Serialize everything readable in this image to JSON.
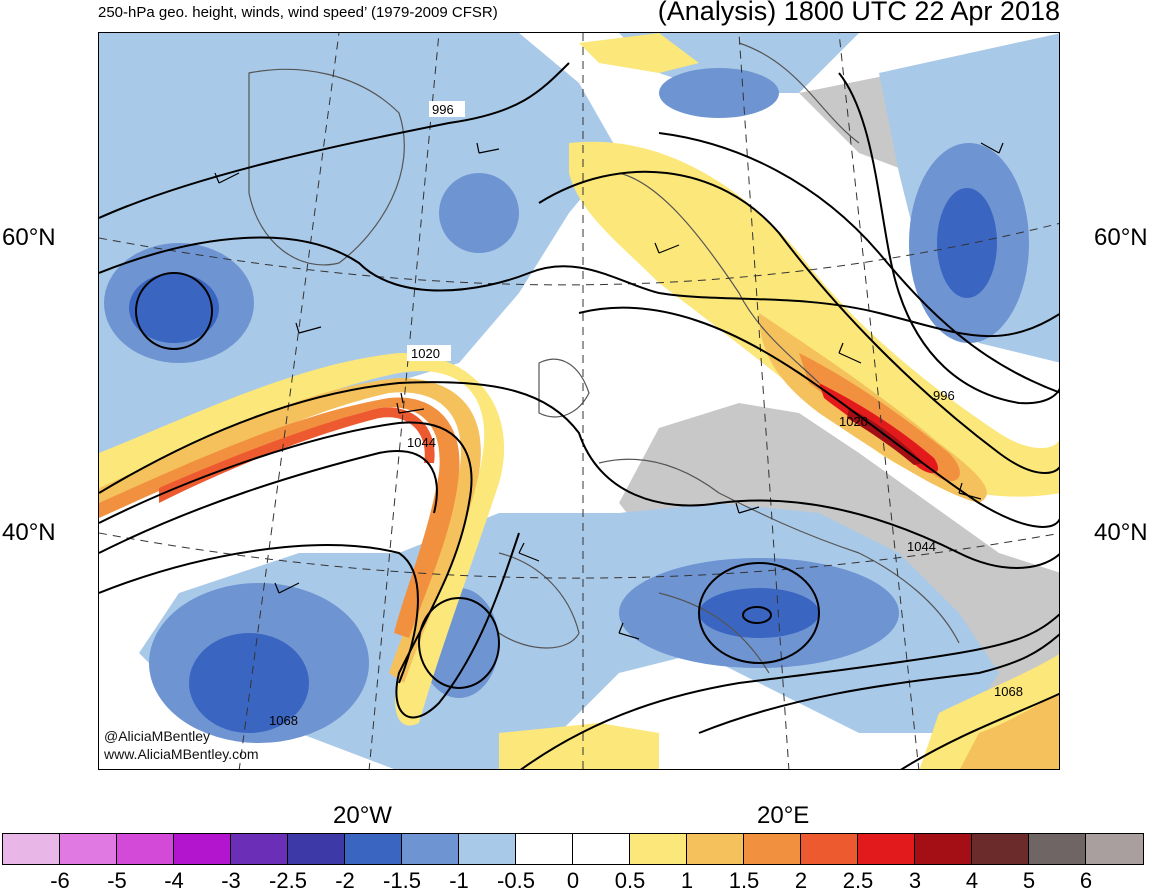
{
  "header": {
    "left_title": "250-hPa geo. height, winds, wind speed’ (1979-2009 CFSR)",
    "right_title": "(Analysis) 1800 UTC 22 Apr 2018"
  },
  "map": {
    "lat_labels": [
      "60°N",
      "40°N"
    ],
    "lon_labels": [
      "20°W",
      "20°E"
    ],
    "contour_labels": [
      "996",
      "1020",
      "1044",
      "1020",
      "996",
      "1044",
      "1068",
      "1068"
    ],
    "credits": [
      "@AliciaMBentley",
      "www.AliciaMBentley.com"
    ]
  },
  "colorbar": {
    "labels": [
      "-6",
      "-5",
      "-4",
      "-3",
      "-2.5",
      "-2",
      "-1.5",
      "-1",
      "-0.5",
      "0",
      "0.5",
      "1",
      "1.5",
      "2",
      "2.5",
      "3",
      "4",
      "5",
      "6"
    ],
    "colors": [
      "#e9b6e8",
      "#e07ae2",
      "#d44ad8",
      "#b315cf",
      "#6a2fb6",
      "#3d3aa8",
      "#3a66c2",
      "#6e94d2",
      "#a9c9e8",
      "#ffffff",
      "#ffffff",
      "#fbe77a",
      "#f5c15c",
      "#f1913f",
      "#ee5a30",
      "#e31a1c",
      "#a30f15",
      "#6b2b2b",
      "#6f6564",
      "#a89f9e"
    ]
  }
}
